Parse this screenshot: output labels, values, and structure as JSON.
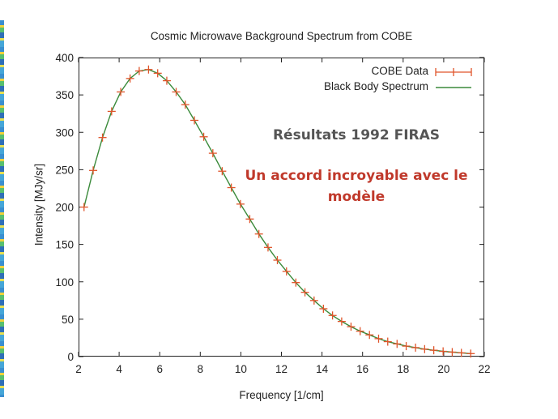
{
  "chart_data": {
    "type": "line",
    "title": "Cosmic Microwave Background Spectrum from COBE",
    "xlabel": "Frequency [1/cm]",
    "ylabel": "Intensity [MJy/sr]",
    "xlim": [
      2,
      22
    ],
    "ylim": [
      0,
      400
    ],
    "xticks": [
      2,
      4,
      6,
      8,
      10,
      12,
      14,
      16,
      18,
      20,
      22
    ],
    "yticks": [
      0,
      50,
      100,
      150,
      200,
      250,
      300,
      350,
      400
    ],
    "grid": false,
    "legend_position": "top-right",
    "series": [
      {
        "name": "COBE Data",
        "style": "points with error bars",
        "color": "#e0542a",
        "x": [
          2.27,
          2.72,
          3.18,
          3.63,
          4.08,
          4.54,
          4.99,
          5.45,
          5.9,
          6.35,
          6.81,
          7.26,
          7.71,
          8.17,
          8.62,
          9.08,
          9.53,
          9.98,
          10.44,
          10.89,
          11.34,
          11.8,
          12.25,
          12.71,
          13.16,
          13.61,
          14.07,
          14.52,
          14.97,
          15.43,
          15.88,
          16.34,
          16.79,
          17.24,
          17.7,
          18.15,
          18.61,
          19.06,
          19.51,
          19.97,
          20.42,
          20.87,
          21.33
        ],
        "y": [
          200,
          249,
          293,
          328,
          354,
          372,
          382,
          384,
          379,
          369,
          354,
          337,
          316,
          294,
          272,
          248,
          226,
          204,
          184,
          164,
          146,
          129,
          114,
          99,
          86,
          75,
          64,
          55,
          47,
          40,
          34,
          29,
          24,
          20,
          17,
          14,
          12,
          10,
          8.5,
          7,
          6,
          5,
          4
        ]
      },
      {
        "name": "Black Body Spectrum",
        "style": "line",
        "color": "#3a8a3a",
        "x": [
          2.27,
          2.72,
          3.18,
          3.63,
          4.08,
          4.54,
          4.99,
          5.45,
          5.9,
          6.35,
          6.81,
          7.26,
          7.71,
          8.17,
          8.62,
          9.08,
          9.53,
          9.98,
          10.44,
          10.89,
          11.34,
          11.8,
          12.25,
          12.71,
          13.16,
          13.61,
          14.07,
          14.52,
          14.97,
          15.43,
          15.88,
          16.34,
          16.79,
          17.24,
          17.7,
          18.15,
          18.61,
          19.06,
          19.51,
          19.97,
          20.42,
          20.87,
          21.33
        ],
        "y": [
          200,
          249,
          293,
          328,
          354,
          372,
          382,
          384,
          379,
          369,
          354,
          337,
          316,
          294,
          272,
          248,
          226,
          204,
          184,
          164,
          146,
          129,
          114,
          99,
          86,
          75,
          64,
          55,
          47,
          40,
          34,
          29,
          24,
          20,
          17,
          14,
          12,
          10,
          8.5,
          7,
          6,
          5,
          4
        ]
      }
    ],
    "annotations": [
      {
        "text": "Résultats 1992 FIRAS",
        "color": "#555555"
      },
      {
        "text": "Un accord incroyable avec le",
        "color": "#c0392b"
      },
      {
        "text": "modèle",
        "color": "#c0392b"
      }
    ]
  }
}
